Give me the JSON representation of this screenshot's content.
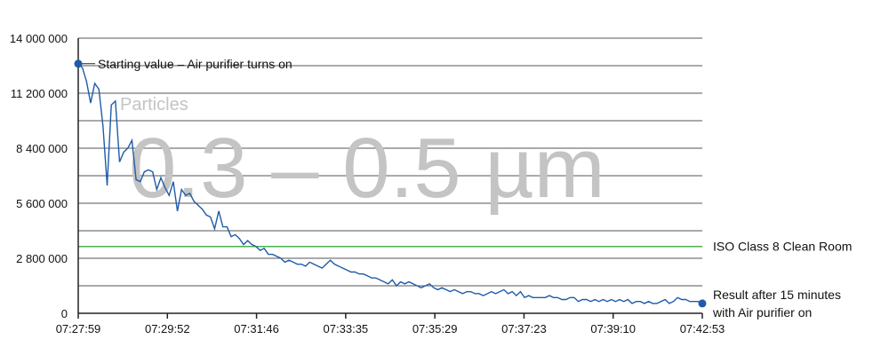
{
  "chart_data": {
    "type": "line",
    "title": "",
    "xlabel": "",
    "ylabel": "",
    "ylim": [
      0,
      14000000
    ],
    "grid": true,
    "y_ticks": [
      0,
      1400000,
      2800000,
      4200000,
      5600000,
      7000000,
      8400000,
      9800000,
      11200000,
      12600000,
      14000000
    ],
    "y_tick_labels": [
      "0",
      "",
      "2 800 000",
      "",
      "5 600 000",
      "",
      "8 400 000",
      "",
      "11 200 000",
      "",
      "14 000 000"
    ],
    "x_tick_labels": [
      "07:27:59",
      "07:29:52",
      "07:31:46",
      "07:33:35",
      "07:35:29",
      "07:37:23",
      "07:39:10",
      "07:42:53"
    ],
    "watermark_label": "Particles",
    "watermark_range": "0.3 – 0.5 µm",
    "reference_line": {
      "value": 3400000,
      "label": "ISO Class 8 Clean Room",
      "color": "#4caf50"
    },
    "start_annotation": "Starting value – Air purifier turns on",
    "end_annotation": [
      "Result after 15 minutes",
      "with Air purifier on"
    ],
    "colors": {
      "series": "#1f5ba8",
      "grid": "#555555",
      "axis": "#222222"
    },
    "series": [
      {
        "values": [
          12700000,
          12500000,
          11800000,
          10700000,
          11700000,
          11400000,
          9500000,
          6500000,
          10600000,
          10800000,
          7700000,
          8200000,
          8400000,
          8800000,
          6800000,
          6700000,
          7200000,
          7300000,
          7200000,
          6300000,
          6900000,
          6400000,
          6000000,
          6700000,
          5200000,
          6300000,
          6000000,
          6100000,
          5700000,
          5500000,
          5300000,
          5000000,
          4900000,
          4300000,
          5200000,
          4400000,
          4400000,
          3900000,
          4000000,
          3800000,
          3500000,
          3700000,
          3500000,
          3400000,
          3200000,
          3300000,
          3000000,
          3000000,
          2900000,
          2800000,
          2600000,
          2700000,
          2600000,
          2500000,
          2500000,
          2400000,
          2600000,
          2500000,
          2400000,
          2300000,
          2500000,
          2700000,
          2500000,
          2400000,
          2300000,
          2200000,
          2100000,
          2100000,
          2000000,
          2000000,
          1900000,
          1800000,
          1800000,
          1700000,
          1600000,
          1500000,
          1700000,
          1400000,
          1600000,
          1500000,
          1600000,
          1500000,
          1400000,
          1300000,
          1400000,
          1500000,
          1300000,
          1200000,
          1300000,
          1200000,
          1100000,
          1200000,
          1100000,
          1000000,
          1100000,
          1100000,
          1000000,
          1000000,
          900000,
          1000000,
          1100000,
          1000000,
          1100000,
          1200000,
          1000000,
          1100000,
          900000,
          1100000,
          800000,
          900000,
          800000,
          800000,
          800000,
          800000,
          900000,
          800000,
          800000,
          700000,
          700000,
          800000,
          800000,
          600000,
          700000,
          700000,
          600000,
          700000,
          600000,
          700000,
          600000,
          700000,
          600000,
          700000,
          600000,
          700000,
          500000,
          600000,
          600000,
          500000,
          600000,
          500000,
          500000,
          600000,
          700000,
          500000,
          600000,
          800000,
          700000,
          700000,
          600000,
          600000,
          600000,
          500000
        ]
      }
    ]
  }
}
